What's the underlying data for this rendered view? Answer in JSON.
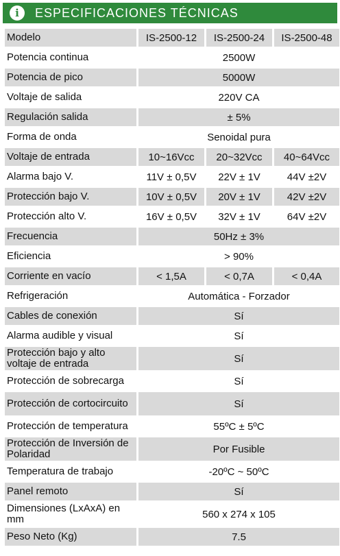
{
  "header": {
    "icon": "info-icon",
    "title": "ESPECIFICACIONES TÉCNICAS"
  },
  "table": {
    "columns": [
      "Modelo",
      "IS-2500-12",
      "IS-2500-24",
      "IS-2500-48"
    ],
    "rows": [
      {
        "label": "Potencia continua",
        "values": [
          "2500W"
        ]
      },
      {
        "label": "Potencia de pico",
        "values": [
          "5000W"
        ]
      },
      {
        "label": "Voltaje de salida",
        "values": [
          "220V CA"
        ]
      },
      {
        "label": "Regulación salida",
        "values": [
          "± 5%"
        ]
      },
      {
        "label": "Forma de onda",
        "values": [
          "Senoidal pura"
        ]
      },
      {
        "label": "Voltaje de entrada",
        "values": [
          "10~16Vcc",
          "20~32Vcc",
          "40~64Vcc"
        ]
      },
      {
        "label": "Alarma bajo V.",
        "values": [
          "11V ± 0,5V",
          "22V ± 1V",
          "44V ±2V"
        ]
      },
      {
        "label": "Protección bajo V.",
        "values": [
          "10V ± 0,5V",
          "20V ± 1V",
          "42V ±2V"
        ]
      },
      {
        "label": "Protección alto V.",
        "values": [
          "16V ± 0,5V",
          "32V ± 1V",
          "64V ±2V"
        ]
      },
      {
        "label": "Frecuencia",
        "values": [
          "50Hz ± 3%"
        ]
      },
      {
        "label": "Eficiencia",
        "values": [
          "> 90%"
        ]
      },
      {
        "label": "Corriente en vacío",
        "values": [
          "< 1,5A",
          "< 0,7A",
          "< 0,4A"
        ]
      },
      {
        "label": "Refrigeración",
        "values": [
          "Automática - Forzador"
        ]
      },
      {
        "label": "Cables de conexión",
        "values": [
          "Sí"
        ]
      },
      {
        "label": "Alarma audible y visual",
        "values": [
          "Sí"
        ]
      },
      {
        "label": "Protección bajo y alto voltaje de entrada",
        "values": [
          "Sí"
        ]
      },
      {
        "label": "Protección de sobrecarga",
        "values": [
          "Sí"
        ]
      },
      {
        "label": "Protección de cortocircuito",
        "values": [
          "Sí"
        ]
      },
      {
        "label": "Protección de temperatura",
        "values": [
          "55ºC ± 5ºC"
        ]
      },
      {
        "label": "Protección de Inversión de Polaridad",
        "values": [
          "Por Fusible"
        ]
      },
      {
        "label": "Temperatura de trabajo",
        "values": [
          "-20ºC ~ 50ºC"
        ]
      },
      {
        "label": "Panel remoto",
        "values": [
          "Sí"
        ]
      },
      {
        "label": "Dimensiones (LxAxA) en mm",
        "values": [
          "560 x 274 x 105"
        ]
      },
      {
        "label": "Peso Neto (Kg)",
        "values": [
          "7.5"
        ]
      }
    ]
  }
}
